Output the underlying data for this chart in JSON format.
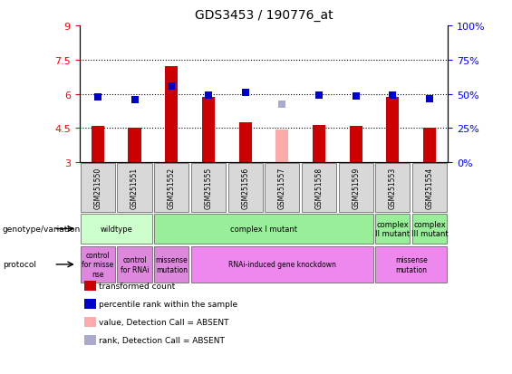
{
  "title": "GDS3453 / 190776_at",
  "samples": [
    "GSM251550",
    "GSM251551",
    "GSM251552",
    "GSM251555",
    "GSM251556",
    "GSM251557",
    "GSM251558",
    "GSM251559",
    "GSM251553",
    "GSM251554"
  ],
  "red_values": [
    4.6,
    4.5,
    7.2,
    5.85,
    4.75,
    4.45,
    4.65,
    4.6,
    5.85,
    4.5
  ],
  "blue_values": [
    5.85,
    5.75,
    6.35,
    5.95,
    6.05,
    5.55,
    5.95,
    5.9,
    5.95,
    5.8
  ],
  "absent_red": [
    false,
    false,
    false,
    false,
    false,
    true,
    false,
    false,
    false,
    false
  ],
  "absent_blue": [
    false,
    false,
    false,
    false,
    false,
    true,
    false,
    false,
    false,
    false
  ],
  "ymin": 3.0,
  "ymax": 9.0,
  "yticks": [
    3,
    4.5,
    6,
    7.5,
    9
  ],
  "dotted_lines": [
    7.5,
    6.0,
    4.5
  ],
  "bar_color": "#cc0000",
  "bar_absent_color": "#ffaaaa",
  "dot_color": "#0000cc",
  "dot_absent_color": "#aaaacc",
  "bar_width": 0.35,
  "genotype_row": [
    {
      "label": "wildtype",
      "cols": [
        0,
        1
      ],
      "color": "#ccffcc"
    },
    {
      "label": "complex I mutant",
      "cols": [
        2,
        3,
        4,
        5,
        6,
        7
      ],
      "color": "#99ee99"
    },
    {
      "label": "complex\nII mutant",
      "cols": [
        8
      ],
      "color": "#99ee99"
    },
    {
      "label": "complex\nIII mutant",
      "cols": [
        9
      ],
      "color": "#99ee99"
    }
  ],
  "protocol_row": [
    {
      "label": "control\nfor misse\nnse",
      "cols": [
        0
      ],
      "color": "#dd88dd"
    },
    {
      "label": "control\nfor RNAi",
      "cols": [
        1
      ],
      "color": "#dd88dd"
    },
    {
      "label": "missense\nmutation",
      "cols": [
        2
      ],
      "color": "#dd88dd"
    },
    {
      "label": "RNAi-induced gene knockdown",
      "cols": [
        3,
        4,
        5,
        6,
        7
      ],
      "color": "#ee88ee"
    },
    {
      "label": "missense\nmutation",
      "cols": [
        8,
        9
      ],
      "color": "#ee88ee"
    }
  ],
  "legend_items": [
    {
      "color": "#cc0000",
      "label": "transformed count"
    },
    {
      "color": "#0000cc",
      "label": "percentile rank within the sample"
    },
    {
      "color": "#ffaaaa",
      "label": "value, Detection Call = ABSENT"
    },
    {
      "color": "#aaaacc",
      "label": "rank, Detection Call = ABSENT"
    }
  ],
  "bg_color": "#d8d8d8",
  "bg_plot_color": "#ffffff"
}
